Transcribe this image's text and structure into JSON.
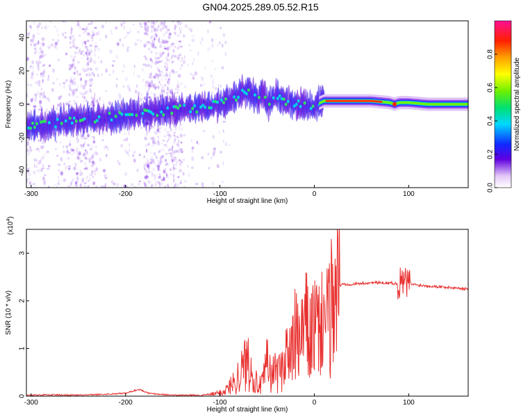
{
  "title": "GN04.2025.289.05.52.R15",
  "chart_data": [
    {
      "type": "heatmap",
      "xlabel": "Height of straight line (km)",
      "ylabel": "Frequency (Hz)",
      "xlim": [
        -305,
        163
      ],
      "ylim": [
        -50,
        50
      ],
      "xticks": [
        -300,
        -200,
        -100,
        0,
        100
      ],
      "yticks": [
        -40,
        -20,
        0,
        20,
        40
      ],
      "colorbar": {
        "label": "Normalized spectral amplitude",
        "range": [
          0,
          1
        ],
        "ticks": [
          "0.0",
          "0.2",
          "0.4",
          "0.6",
          "0.8"
        ]
      },
      "ridge": {
        "x": [
          -305,
          -280,
          -260,
          -240,
          -220,
          -200,
          -180,
          -160,
          -140,
          -120,
          -100,
          -90,
          -80,
          -70,
          -60,
          -55,
          -50,
          -40,
          -30,
          -20,
          -10,
          0,
          10,
          20,
          40,
          60,
          80,
          85,
          90,
          100,
          120,
          140,
          163
        ],
        "y": [
          -14,
          -12,
          -10,
          -9,
          -8,
          -7,
          -5,
          -4,
          -3,
          -2,
          0,
          2,
          6,
          8,
          3,
          8,
          0,
          5,
          1,
          0,
          -1,
          -1,
          2,
          2,
          2,
          2,
          1,
          0,
          1,
          1,
          0,
          0,
          0
        ]
      }
    },
    {
      "type": "line",
      "xlabel": "Height of straight line (km)",
      "ylabel": "SNR (10 * v/v)",
      "scale_label": "(x10",
      "scale_exp": "4",
      "scale_close": ")",
      "xlim": [
        -305,
        163
      ],
      "ylim": [
        0,
        3.5
      ],
      "xticks": [
        -300,
        -200,
        -100,
        0,
        100
      ],
      "yticks": [
        "0",
        "1",
        "2",
        "3"
      ],
      "series": [
        {
          "name": "SNR",
          "color": "#e8302f",
          "x": [
            -305,
            -280,
            -250,
            -220,
            -200,
            -190,
            -185,
            -175,
            -150,
            -120,
            -105,
            -95,
            -90,
            -85,
            -80,
            -75,
            -70,
            -65,
            -60,
            -55,
            -50,
            -45,
            -40,
            -35,
            -30,
            -25,
            -20,
            -15,
            -10,
            -5,
            0,
            5,
            10,
            15,
            20,
            25,
            30,
            40,
            60,
            80,
            90,
            95,
            100,
            110,
            130,
            150,
            163
          ],
          "y": [
            0.02,
            0.03,
            0.02,
            0.04,
            0.06,
            0.12,
            0.14,
            0.06,
            0.02,
            0.02,
            0.05,
            0.1,
            0.2,
            0.3,
            0.45,
            0.6,
            0.8,
            0.5,
            0.2,
            0.25,
            0.7,
            0.4,
            0.6,
            0.5,
            1.0,
            0.8,
            1.3,
            1.0,
            1.6,
            1.2,
            1.5,
            1.3,
            1.8,
            1.5,
            2.2,
            2.3,
            2.35,
            2.35,
            2.38,
            2.38,
            2.35,
            2.4,
            2.36,
            2.33,
            2.3,
            2.27,
            2.25
          ]
        }
      ]
    }
  ]
}
